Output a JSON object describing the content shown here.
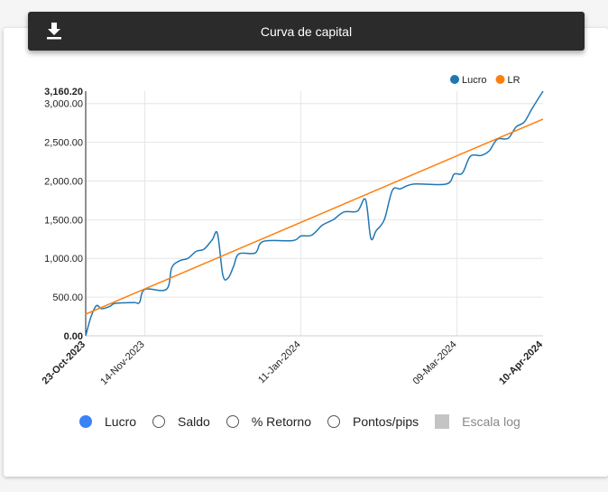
{
  "header": {
    "title": "Curva de capital",
    "download_icon": "download-icon"
  },
  "chart_data": {
    "type": "line",
    "title": "",
    "xlabel": "",
    "ylabel": "",
    "ylim": [
      0,
      3160.2
    ],
    "y_ticks": [
      0,
      500,
      1000,
      1500,
      2000,
      2500,
      3000,
      3160.2
    ],
    "y_tick_labels": [
      "0.00",
      "500.00",
      "1,000.00",
      "1,500.00",
      "2,000.00",
      "2,500.00",
      "3,000.00",
      "3,160.20"
    ],
    "x_range": [
      "2023-10-23",
      "2024-04-10"
    ],
    "x_ticks": [
      "2023-10-23",
      "2023-11-14",
      "2024-01-11",
      "2024-03-09",
      "2024-04-10"
    ],
    "x_tick_labels": [
      "23-Oct-2023",
      "14-Nov-2023",
      "11-Jan-2024",
      "09-Mar-2024",
      "10-Apr-2024"
    ],
    "x_tick_bold": [
      true,
      false,
      false,
      false,
      true
    ],
    "grid": true,
    "legend": "top-right",
    "series": [
      {
        "name": "Lucro",
        "color": "#1f77b4",
        "points": [
          [
            "2023-10-23",
            0
          ],
          [
            "2023-10-25",
            250
          ],
          [
            "2023-10-27",
            390
          ],
          [
            "2023-10-29",
            350
          ],
          [
            "2023-11-01",
            380
          ],
          [
            "2023-11-03",
            420
          ],
          [
            "2023-11-10",
            430
          ],
          [
            "2023-11-12",
            430
          ],
          [
            "2023-11-14",
            600
          ],
          [
            "2023-11-22",
            600
          ],
          [
            "2023-11-24",
            880
          ],
          [
            "2023-11-27",
            970
          ],
          [
            "2023-11-30",
            1000
          ],
          [
            "2023-12-03",
            1090
          ],
          [
            "2023-12-06",
            1120
          ],
          [
            "2023-12-09",
            1240
          ],
          [
            "2023-12-11",
            1320
          ],
          [
            "2023-12-13",
            780
          ],
          [
            "2023-12-15",
            750
          ],
          [
            "2023-12-17",
            900
          ],
          [
            "2023-12-19",
            1060
          ],
          [
            "2023-12-25",
            1070
          ],
          [
            "2023-12-28",
            1220
          ],
          [
            "2024-01-08",
            1230
          ],
          [
            "2024-01-11",
            1290
          ],
          [
            "2024-01-15",
            1300
          ],
          [
            "2024-01-19",
            1430
          ],
          [
            "2024-01-23",
            1500
          ],
          [
            "2024-01-27",
            1600
          ],
          [
            "2024-02-01",
            1610
          ],
          [
            "2024-02-04",
            1760
          ],
          [
            "2024-02-06",
            1260
          ],
          [
            "2024-02-08",
            1360
          ],
          [
            "2024-02-11",
            1500
          ],
          [
            "2024-02-14",
            1880
          ],
          [
            "2024-02-17",
            1900
          ],
          [
            "2024-02-22",
            1960
          ],
          [
            "2024-03-05",
            1960
          ],
          [
            "2024-03-08",
            2090
          ],
          [
            "2024-03-11",
            2100
          ],
          [
            "2024-03-14",
            2320
          ],
          [
            "2024-03-18",
            2330
          ],
          [
            "2024-03-21",
            2390
          ],
          [
            "2024-03-24",
            2540
          ],
          [
            "2024-03-28",
            2550
          ],
          [
            "2024-03-31",
            2700
          ],
          [
            "2024-04-03",
            2760
          ],
          [
            "2024-04-06",
            2940
          ],
          [
            "2024-04-10",
            3160.2
          ]
        ]
      },
      {
        "name": "LR",
        "color": "#ff7f0e",
        "points": [
          [
            "2023-10-23",
            280
          ],
          [
            "2024-04-10",
            2800
          ]
        ]
      }
    ]
  },
  "controls": {
    "options": [
      {
        "label": "Lucro",
        "selected": true
      },
      {
        "label": "Saldo",
        "selected": false
      },
      {
        "label": "% Retorno",
        "selected": false
      },
      {
        "label": "Pontos/pips",
        "selected": false
      }
    ],
    "log_scale_label": "Escala log"
  }
}
